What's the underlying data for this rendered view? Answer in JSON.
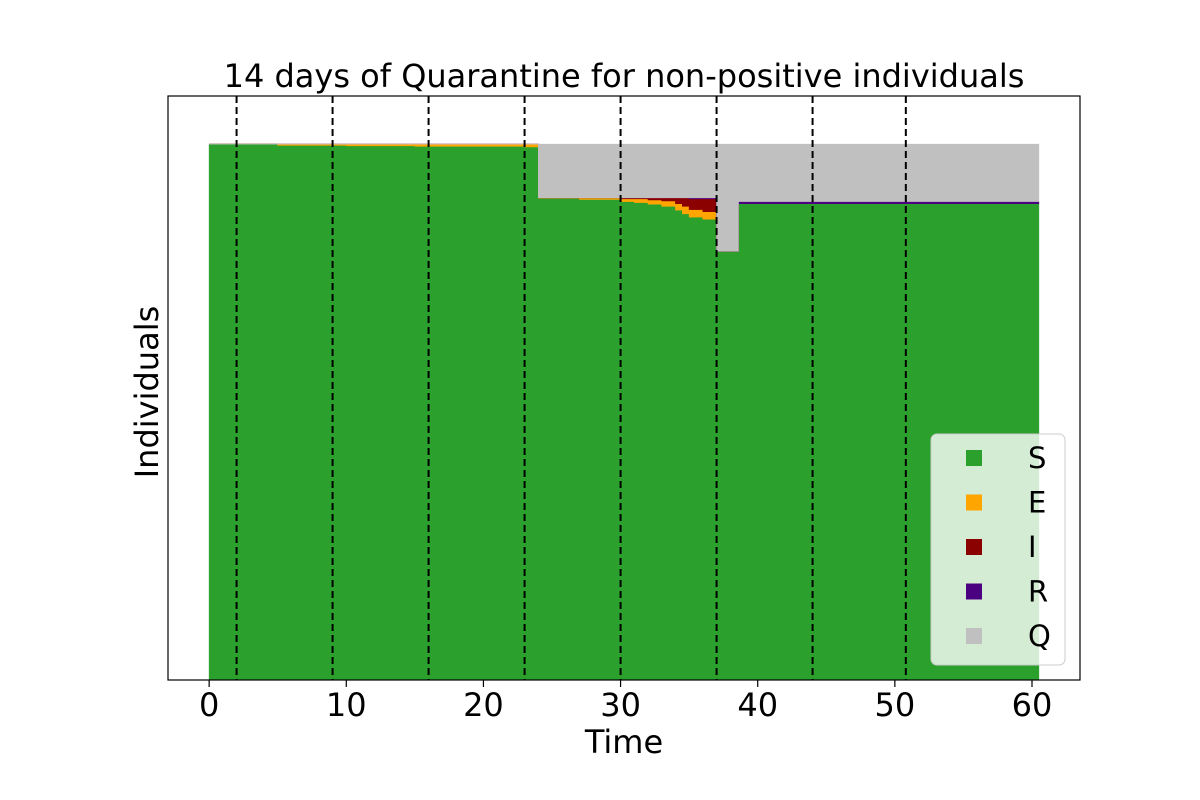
{
  "chart_data": {
    "type": "area",
    "title": "14 days of Quarantine for non-positive individuals",
    "xlabel": "Time",
    "ylabel": "Individuals",
    "xlim": [
      -3,
      63.5
    ],
    "ylim": [
      0,
      1.09
    ],
    "xticks": [
      0,
      10,
      20,
      30,
      40,
      50,
      60
    ],
    "yticks_visible": false,
    "grid": false,
    "legend_position": "lower-right",
    "stack_order": [
      "S",
      "E",
      "I",
      "R",
      "Q"
    ],
    "series": [
      {
        "name": "S",
        "color": "#2ca02c"
      },
      {
        "name": "E",
        "color": "#ffa500"
      },
      {
        "name": "I",
        "color": "#8b0000"
      },
      {
        "name": "R",
        "color": "#4b0082"
      },
      {
        "name": "Q",
        "color": "#c0c0c0"
      }
    ],
    "points": [
      {
        "t": 0,
        "S": 1.0,
        "E": 0.0,
        "I": 0.0,
        "R": 0.0,
        "Q": 0.0
      },
      {
        "t": 5,
        "S": 0.998,
        "E": 0.002,
        "I": 0.0,
        "R": 0.0,
        "Q": 0.0
      },
      {
        "t": 10,
        "S": 0.997,
        "E": 0.003,
        "I": 0.0,
        "R": 0.0,
        "Q": 0.0
      },
      {
        "t": 15,
        "S": 0.996,
        "E": 0.004,
        "I": 0.0,
        "R": 0.0,
        "Q": 0.0
      },
      {
        "t": 20,
        "S": 0.996,
        "E": 0.004,
        "I": 0.0,
        "R": 0.0,
        "Q": 0.0
      },
      {
        "t": 23,
        "S": 0.995,
        "E": 0.005,
        "I": 0.0,
        "R": 0.0,
        "Q": 0.0
      },
      {
        "t": 24,
        "S": 0.899,
        "E": 0.001,
        "I": 0.0,
        "R": 0.0,
        "Q": 0.1
      },
      {
        "t": 27,
        "S": 0.897,
        "E": 0.003,
        "I": 0.0,
        "R": 0.0,
        "Q": 0.1
      },
      {
        "t": 30,
        "S": 0.893,
        "E": 0.005,
        "I": 0.002,
        "R": 0.0,
        "Q": 0.1
      },
      {
        "t": 31,
        "S": 0.891,
        "E": 0.007,
        "I": 0.002,
        "R": 0.0,
        "Q": 0.1
      },
      {
        "t": 32,
        "S": 0.888,
        "E": 0.008,
        "I": 0.004,
        "R": 0.0,
        "Q": 0.1
      },
      {
        "t": 33,
        "S": 0.884,
        "E": 0.01,
        "I": 0.006,
        "R": 0.0,
        "Q": 0.1
      },
      {
        "t": 34,
        "S": 0.877,
        "E": 0.012,
        "I": 0.011,
        "R": 0.0,
        "Q": 0.1
      },
      {
        "t": 34.5,
        "S": 0.87,
        "E": 0.014,
        "I": 0.016,
        "R": 0.0,
        "Q": 0.1
      },
      {
        "t": 35,
        "S": 0.864,
        "E": 0.014,
        "I": 0.02,
        "R": 0.002,
        "Q": 0.1
      },
      {
        "t": 36,
        "S": 0.86,
        "E": 0.014,
        "I": 0.024,
        "R": 0.002,
        "Q": 0.1
      },
      {
        "t": 37,
        "S": 0.8,
        "E": 0.0,
        "I": 0.0,
        "R": 0.0,
        "Q": 0.2
      },
      {
        "t": 38.6,
        "S": 0.889,
        "E": 0.0,
        "I": 0.0,
        "R": 0.004,
        "Q": 0.107
      },
      {
        "t": 45,
        "S": 0.889,
        "E": 0.0,
        "I": 0.0,
        "R": 0.004,
        "Q": 0.107
      },
      {
        "t": 55,
        "S": 0.889,
        "E": 0.0,
        "I": 0.0,
        "R": 0.004,
        "Q": 0.107
      },
      {
        "t": 60.5,
        "S": 0.889,
        "E": 0.0,
        "I": 0.0,
        "R": 0.004,
        "Q": 0.107
      }
    ],
    "vlines": [
      2,
      9,
      16,
      23,
      30,
      37,
      44,
      50.8
    ]
  }
}
